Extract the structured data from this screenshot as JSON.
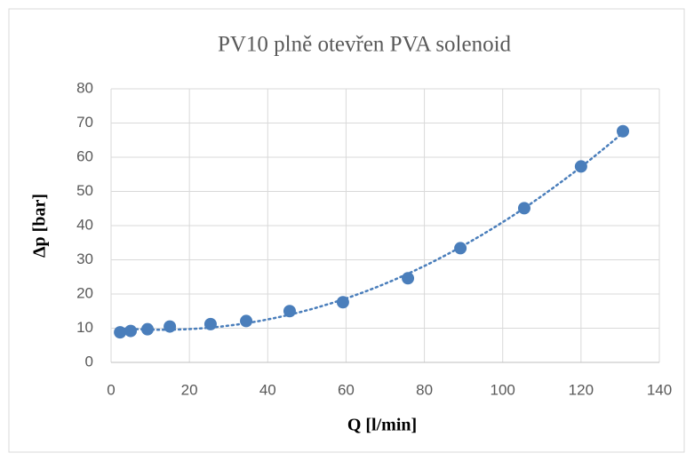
{
  "chart_data": {
    "type": "scatter",
    "title": "PV10 plně otevřen PVA solenoid",
    "xlabel": "Q [l/min]",
    "ylabel": "Δp [bar]",
    "series": [
      {
        "color": "#4a7ebb",
        "x": [
          2.3,
          5,
          9.3,
          15,
          25.4,
          34.5,
          45.6,
          59.2,
          75.8,
          89.2,
          105.5,
          120,
          130.7
        ],
        "values": [
          8.8,
          9.2,
          9.7,
          10.5,
          11.2,
          12.1,
          15,
          17.6,
          24.6,
          33.4,
          45.1,
          57.3,
          67.6
        ]
      }
    ],
    "trendline": {
      "type": "polynomial",
      "order": 2
    },
    "xlim": [
      0,
      140
    ],
    "xticks": [
      0,
      20,
      40,
      60,
      80,
      100,
      120,
      140
    ],
    "ylim": [
      0,
      80
    ],
    "yticks": [
      0,
      10,
      20,
      30,
      40,
      50,
      60,
      70,
      80
    ],
    "grid": true
  }
}
